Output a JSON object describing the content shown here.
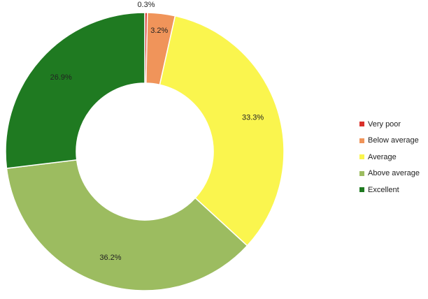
{
  "chart_data": {
    "type": "pie",
    "subtype": "donut",
    "categories": [
      "Very poor",
      "Below average",
      "Average",
      "Above average",
      "Excellent"
    ],
    "values": [
      0.3,
      3.2,
      33.3,
      36.2,
      26.9
    ],
    "labels": [
      "0.3%",
      "3.2%",
      "33.3%",
      "36.2%",
      "26.9%"
    ],
    "colors": [
      "#d9302a",
      "#f0945a",
      "#faf54e",
      "#9cbc60",
      "#1f7a21"
    ],
    "start_angle_deg": 0,
    "direction": "clockwise",
    "legend_position": "right"
  }
}
